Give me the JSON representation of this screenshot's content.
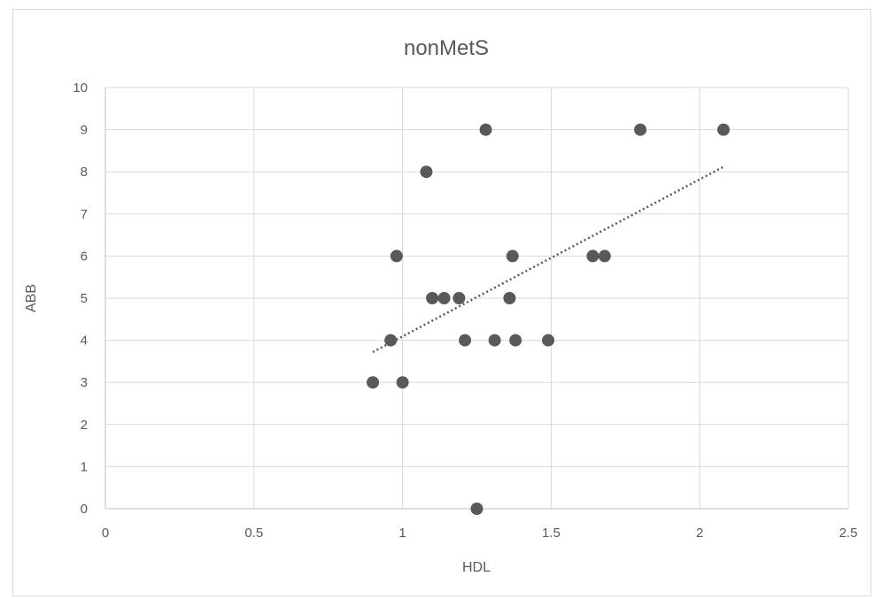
{
  "chart_data": {
    "type": "scatter",
    "title": "nonMetS",
    "xlabel": "HDL",
    "ylabel": "ABB",
    "xlim": [
      0,
      2.5
    ],
    "ylim": [
      0,
      10
    ],
    "x_ticks": [
      "0",
      "0.5",
      "1",
      "1.5",
      "2",
      "2.5"
    ],
    "y_ticks": [
      "0",
      "1",
      "2",
      "3",
      "4",
      "5",
      "6",
      "7",
      "8",
      "9",
      "10"
    ],
    "grid": true,
    "legend": "none",
    "series": [
      {
        "points": [
          {
            "x": 0.9,
            "y": 3
          },
          {
            "x": 1.0,
            "y": 3
          },
          {
            "x": 0.96,
            "y": 4
          },
          {
            "x": 1.21,
            "y": 4
          },
          {
            "x": 1.31,
            "y": 4
          },
          {
            "x": 1.38,
            "y": 4
          },
          {
            "x": 1.49,
            "y": 4
          },
          {
            "x": 1.1,
            "y": 5
          },
          {
            "x": 1.14,
            "y": 5
          },
          {
            "x": 1.19,
            "y": 5
          },
          {
            "x": 1.36,
            "y": 5
          },
          {
            "x": 0.98,
            "y": 6
          },
          {
            "x": 1.37,
            "y": 6
          },
          {
            "x": 1.64,
            "y": 6
          },
          {
            "x": 1.68,
            "y": 6
          },
          {
            "x": 1.08,
            "y": 8
          },
          {
            "x": 1.28,
            "y": 9
          },
          {
            "x": 1.8,
            "y": 9
          },
          {
            "x": 2.08,
            "y": 9
          },
          {
            "x": 1.25,
            "y": 0
          }
        ],
        "color": "#595959"
      }
    ],
    "trendline": {
      "type": "linear",
      "x_start": 0.9,
      "y_start": 3.72,
      "x_end": 2.08,
      "y_end": 8.12,
      "style": "dotted",
      "color": "#595959"
    }
  }
}
